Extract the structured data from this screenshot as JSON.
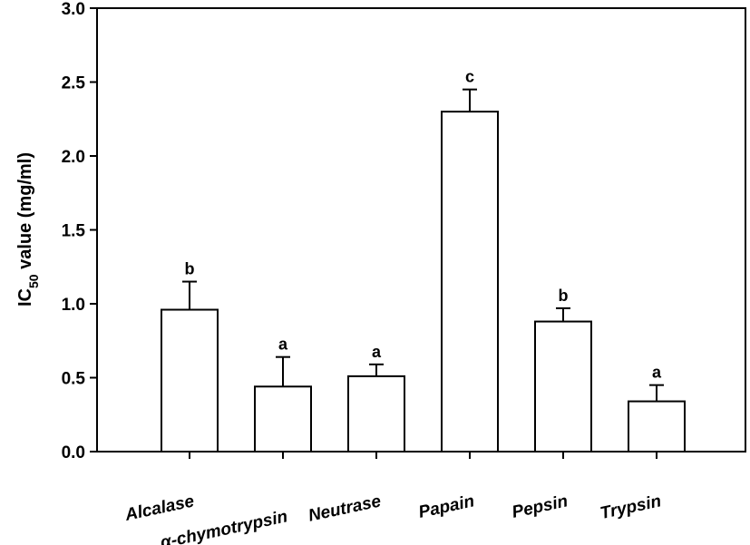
{
  "chart_data": {
    "type": "bar",
    "title": "",
    "xlabel": "",
    "ylabel": {
      "prefix": "IC",
      "subscript": "50",
      "suffix": " value (mg/ml)"
    },
    "ylim": [
      0,
      3.0
    ],
    "yticks": [
      "0.0",
      "0.5",
      "1.0",
      "1.5",
      "2.0",
      "2.5",
      "3.0"
    ],
    "grid": false,
    "categories": [
      "Alcalase",
      "α-chymotrypsin",
      "Neutrase",
      "Papain",
      "Pepsin",
      "Trypsin"
    ],
    "values": [
      0.96,
      0.44,
      0.51,
      2.3,
      0.88,
      0.34
    ],
    "errors": [
      0.19,
      0.2,
      0.08,
      0.15,
      0.09,
      0.11
    ],
    "significance": [
      "b",
      "a",
      "a",
      "c",
      "b",
      "a"
    ],
    "bar_fill": "#ffffff",
    "bar_stroke": "#000000"
  }
}
